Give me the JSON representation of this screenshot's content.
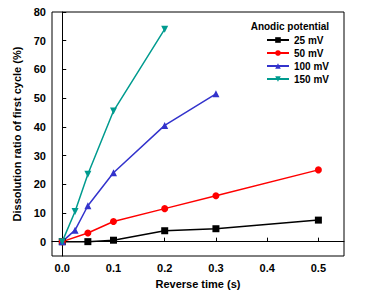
{
  "chart_data": {
    "type": "line",
    "x_label": "Reverse time (s)",
    "y_label": "Dissolution ratio of first cycle (%)",
    "legend_title": "Anodic potential",
    "legend": "upper right",
    "grid": false,
    "xlim": [
      -0.02,
      0.55
    ],
    "xticks": [
      {
        "value": 0,
        "label": "0.0"
      },
      0.1,
      0.2,
      0.3,
      0.4,
      0.5
    ],
    "ylim": [
      -5,
      80
    ],
    "yticks": [
      0,
      10,
      20,
      30,
      40,
      50,
      60,
      70,
      80
    ],
    "series": [
      {
        "name": "25 mV",
        "color": "#000000",
        "marker": "square",
        "x": [
          0,
          0.05,
          0.1,
          0.2,
          0.3,
          0.5
        ],
        "values": [
          0,
          0,
          0.5,
          3.8,
          4.5,
          7.5
        ]
      },
      {
        "name": "50 mV",
        "color": "#ff0000",
        "marker": "circle",
        "x": [
          0,
          0.05,
          0.1,
          0.2,
          0.3,
          0.5
        ],
        "values": [
          0,
          3,
          7,
          11.5,
          16,
          25
        ]
      },
      {
        "name": "100 mV",
        "color": "#3333cc",
        "marker": "triangle",
        "x": [
          0,
          0.025,
          0.05,
          0.1,
          0.2,
          0.3
        ],
        "values": [
          0,
          4,
          12.5,
          24,
          40.5,
          51.5
        ]
      },
      {
        "name": "150 mV",
        "color": "#009b8f",
        "marker": "triangle-down",
        "x": [
          0,
          0.025,
          0.05,
          0.1,
          0.2
        ],
        "values": [
          0,
          10.5,
          23.5,
          45.5,
          74
        ]
      }
    ]
  }
}
